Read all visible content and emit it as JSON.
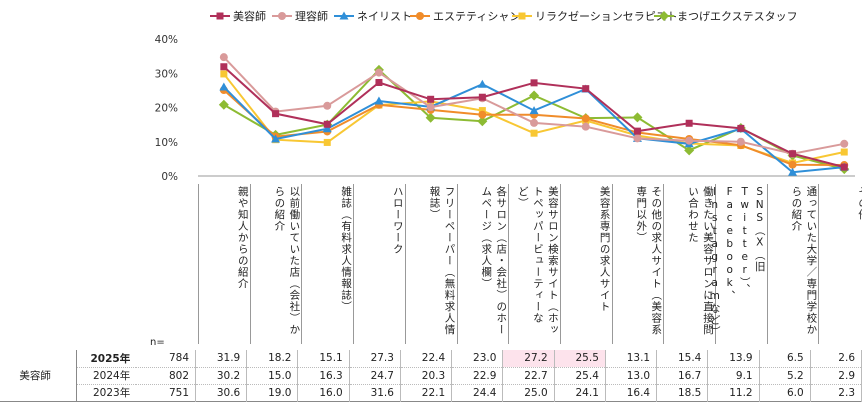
{
  "chart_data": {
    "type": "line",
    "ylim": [
      0,
      40
    ],
    "yticks": [
      "0%",
      "10%",
      "20%",
      "30%",
      "40%"
    ],
    "categories": [
      "親や知人からの紹介",
      "以前働いていた店（会社）からの紹介",
      "雑誌（有料求人情報誌）",
      "ハローワーク",
      "フリーペーパー（無料求人情報誌）",
      "各サロン（店・会社）のホームページ（求人欄）",
      "美容サロン検索サイト（ホットペッパービューティーなど）",
      "美容系専門の求人サイト",
      "その他の求人サイト（美容系専門以外）",
      "働きたい美容サロンに直接問い合わせた",
      "SNS（X（旧Twitter）、Facebook、Instagramなど）",
      "通っていた大学／専門学校からの紹介",
      "その他"
    ],
    "series": [
      {
        "name": "美容師",
        "color": "#b0305a",
        "marker": "square",
        "values": [
          31.9,
          18.2,
          15.1,
          27.3,
          22.4,
          23.0,
          27.2,
          25.5,
          13.1,
          15.4,
          13.9,
          6.5,
          2.6
        ]
      },
      {
        "name": "理容師",
        "color": "#d99a9a",
        "marker": "circle",
        "values": [
          34.7,
          18.8,
          20.5,
          30.2,
          20.1,
          22.7,
          15.5,
          14.4,
          11.0,
          10.3,
          10.0,
          6.5,
          9.4
        ]
      },
      {
        "name": "ネイリスト",
        "color": "#2f8fd8",
        "marker": "triangle",
        "values": [
          26.0,
          10.8,
          13.8,
          21.9,
          20.2,
          26.8,
          19.1,
          25.4,
          11.0,
          9.4,
          13.8,
          1.1,
          2.6
        ]
      },
      {
        "name": "エステティシャン",
        "color": "#f08c2a",
        "marker": "circle",
        "values": [
          25.1,
          11.5,
          13.0,
          20.8,
          19.3,
          17.9,
          17.9,
          16.8,
          12.7,
          10.8,
          9.0,
          3.3,
          3.2
        ]
      },
      {
        "name": "リラクゼーションセラピスト",
        "color": "#f8c733",
        "marker": "square",
        "values": [
          29.8,
          10.6,
          9.8,
          20.7,
          21.8,
          19.1,
          12.5,
          16.2,
          11.8,
          9.5,
          8.9,
          3.8,
          7.0
        ]
      },
      {
        "name": "まつげエクステスタッフ",
        "color": "#8dbb33",
        "marker": "diamond",
        "values": [
          20.8,
          12.0,
          15.0,
          31.0,
          17.0,
          16.0,
          23.5,
          16.9,
          17.1,
          7.5,
          14.0,
          6.0,
          2.0
        ]
      }
    ]
  },
  "table": {
    "n_label": "n=",
    "group": "美容師",
    "highlight_row": 0,
    "highlight_cols": [
      6,
      7
    ],
    "rows": [
      {
        "year": "2025年",
        "n": "784",
        "values": [
          "31.9",
          "18.2",
          "15.1",
          "27.3",
          "22.4",
          "23.0",
          "27.2",
          "25.5",
          "13.1",
          "15.4",
          "13.9",
          "6.5",
          "2.6"
        ]
      },
      {
        "year": "2024年",
        "n": "802",
        "values": [
          "30.2",
          "15.0",
          "16.3",
          "24.7",
          "20.3",
          "22.9",
          "22.7",
          "25.4",
          "13.0",
          "16.7",
          "9.1",
          "5.2",
          "2.9"
        ]
      },
      {
        "year": "2023年",
        "n": "751",
        "values": [
          "30.6",
          "19.0",
          "16.0",
          "31.6",
          "22.1",
          "24.4",
          "25.0",
          "24.1",
          "16.4",
          "18.5",
          "11.2",
          "6.0",
          "2.3"
        ]
      }
    ]
  }
}
